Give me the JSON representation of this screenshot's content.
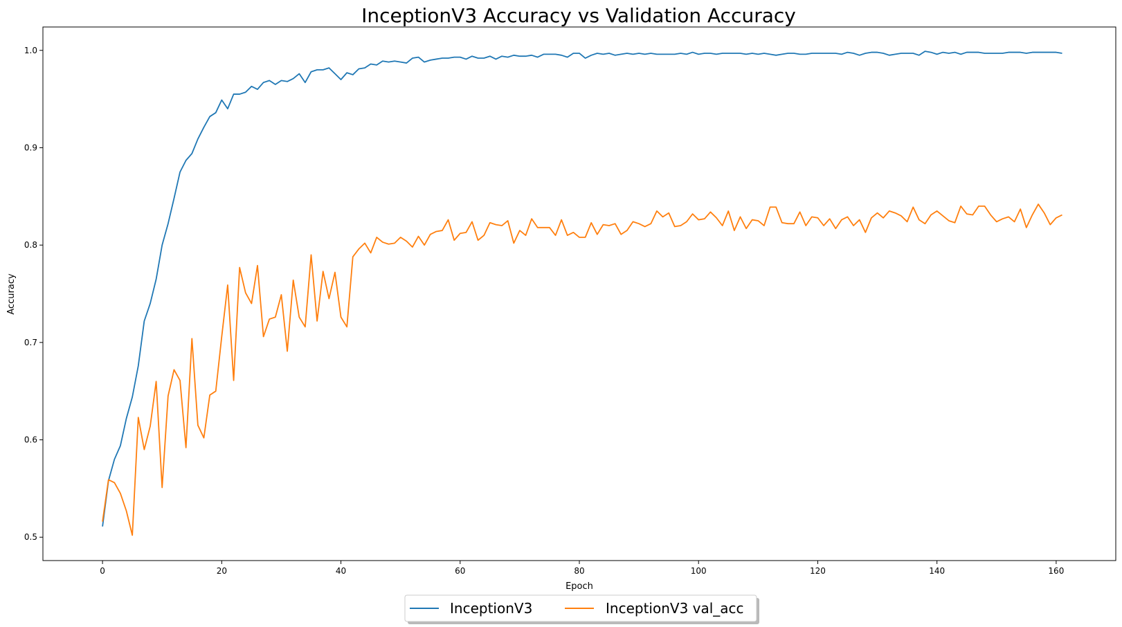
{
  "chart_data": {
    "type": "line",
    "title": "InceptionV3 Accuracy vs Validation Accuracy",
    "xlabel": "Epoch",
    "ylabel": "Accuracy",
    "xlim": [
      -10,
      170
    ],
    "ylim": [
      0.476,
      1.024
    ],
    "xticks": [
      0,
      20,
      40,
      60,
      80,
      100,
      120,
      140,
      160
    ],
    "yticks": [
      0.5,
      0.6,
      0.7,
      0.8,
      0.9,
      1.0
    ],
    "grid": false,
    "legend_position": "bottom-center, outside plot",
    "series": [
      {
        "name": "InceptionV3",
        "color": "#1f77b4",
        "values": [
          0.511,
          0.558,
          0.58,
          0.594,
          0.622,
          0.644,
          0.676,
          0.722,
          0.74,
          0.765,
          0.8,
          0.822,
          0.848,
          0.875,
          0.887,
          0.894,
          0.909,
          0.921,
          0.932,
          0.936,
          0.949,
          0.94,
          0.955,
          0.955,
          0.957,
          0.963,
          0.96,
          0.967,
          0.969,
          0.965,
          0.969,
          0.968,
          0.971,
          0.976,
          0.967,
          0.978,
          0.98,
          0.98,
          0.982,
          0.976,
          0.97,
          0.977,
          0.975,
          0.981,
          0.982,
          0.986,
          0.985,
          0.989,
          0.988,
          0.989,
          0.988,
          0.987,
          0.992,
          0.993,
          0.988,
          0.99,
          0.991,
          0.992,
          0.992,
          0.993,
          0.993,
          0.991,
          0.994,
          0.992,
          0.992,
          0.994,
          0.991,
          0.994,
          0.993,
          0.995,
          0.994,
          0.994,
          0.995,
          0.993,
          0.996,
          0.996,
          0.996,
          0.995,
          0.993,
          0.997,
          0.997,
          0.992,
          0.995,
          0.997,
          0.996,
          0.997,
          0.995,
          0.996,
          0.997,
          0.996,
          0.997,
          0.996,
          0.997,
          0.996,
          0.996,
          0.996,
          0.996,
          0.997,
          0.996,
          0.998,
          0.996,
          0.997,
          0.997,
          0.996,
          0.997,
          0.997,
          0.997,
          0.997,
          0.996,
          0.997,
          0.996,
          0.997,
          0.996,
          0.995,
          0.996,
          0.997,
          0.997,
          0.996,
          0.996,
          0.997,
          0.997,
          0.997,
          0.997,
          0.997,
          0.996,
          0.998,
          0.997,
          0.995,
          0.997,
          0.998,
          0.998,
          0.997,
          0.995,
          0.996,
          0.997,
          0.997,
          0.997,
          0.995,
          0.999,
          0.998,
          0.996,
          0.998,
          0.997,
          0.998,
          0.996,
          0.998,
          0.998,
          0.998,
          0.997,
          0.997,
          0.997,
          0.997,
          0.998,
          0.998,
          0.998,
          0.997,
          0.998,
          0.998,
          0.998,
          0.998,
          0.998,
          0.997
        ]
      },
      {
        "name": "InceptionV3 val_acc",
        "color": "#ff7f0e",
        "values": [
          0.516,
          0.559,
          0.556,
          0.545,
          0.527,
          0.502,
          0.623,
          0.59,
          0.614,
          0.66,
          0.551,
          0.645,
          0.672,
          0.661,
          0.592,
          0.704,
          0.615,
          0.602,
          0.646,
          0.65,
          0.706,
          0.759,
          0.661,
          0.777,
          0.751,
          0.74,
          0.779,
          0.706,
          0.724,
          0.726,
          0.749,
          0.691,
          0.764,
          0.726,
          0.716,
          0.79,
          0.722,
          0.773,
          0.745,
          0.772,
          0.726,
          0.716,
          0.788,
          0.796,
          0.802,
          0.792,
          0.808,
          0.803,
          0.801,
          0.802,
          0.808,
          0.804,
          0.798,
          0.809,
          0.8,
          0.811,
          0.814,
          0.815,
          0.826,
          0.805,
          0.812,
          0.813,
          0.824,
          0.805,
          0.81,
          0.823,
          0.821,
          0.82,
          0.825,
          0.802,
          0.815,
          0.81,
          0.827,
          0.818,
          0.818,
          0.818,
          0.81,
          0.826,
          0.81,
          0.813,
          0.808,
          0.808,
          0.823,
          0.811,
          0.821,
          0.82,
          0.822,
          0.811,
          0.815,
          0.824,
          0.822,
          0.819,
          0.822,
          0.835,
          0.829,
          0.833,
          0.819,
          0.82,
          0.824,
          0.832,
          0.826,
          0.827,
          0.834,
          0.828,
          0.82,
          0.835,
          0.815,
          0.829,
          0.817,
          0.826,
          0.825,
          0.82,
          0.839,
          0.839,
          0.823,
          0.822,
          0.822,
          0.834,
          0.82,
          0.829,
          0.828,
          0.82,
          0.827,
          0.817,
          0.826,
          0.829,
          0.82,
          0.826,
          0.813,
          0.828,
          0.833,
          0.828,
          0.835,
          0.833,
          0.83,
          0.824,
          0.839,
          0.826,
          0.822,
          0.831,
          0.835,
          0.83,
          0.825,
          0.823,
          0.84,
          0.832,
          0.831,
          0.84,
          0.84,
          0.831,
          0.824,
          0.827,
          0.829,
          0.824,
          0.837,
          0.818,
          0.831,
          0.842,
          0.833,
          0.821,
          0.828,
          0.831
        ]
      }
    ]
  }
}
